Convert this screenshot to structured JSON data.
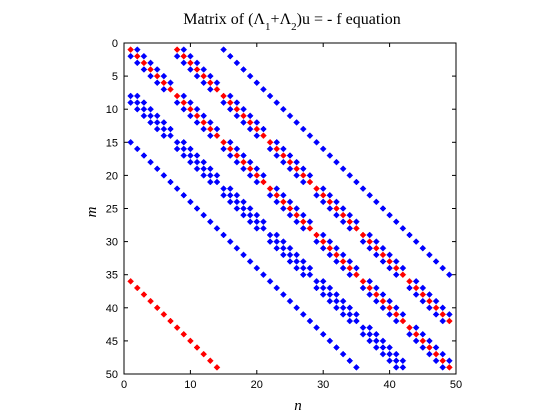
{
  "chart_data": {
    "type": "scatter",
    "title": {
      "prefix": "Matrix of (",
      "lambda": "Λ",
      "sub1": "1",
      "plus": "+",
      "sub2": "2",
      "suffix": ")u = - f equation"
    },
    "xlabel": "n",
    "ylabel": "m",
    "xlim": [
      0,
      50
    ],
    "ylim": [
      50,
      0
    ],
    "y_reversed": true,
    "x_ticks": [
      0,
      10,
      20,
      30,
      40,
      50
    ],
    "y_ticks": [
      0,
      5,
      10,
      15,
      20,
      25,
      30,
      35,
      40,
      45,
      50
    ],
    "grid": false,
    "legend": "none",
    "size": 49,
    "block_size": 7,
    "series": [
      {
        "color": "#ff0000",
        "offsets": [
          0,
          7,
          -35
        ]
      },
      {
        "color": "#0000ff",
        "offsets": [
          -1,
          1,
          -7,
          7,
          -8,
          8,
          -14,
          14
        ],
        "rule": "red block near-diagonal ±1 within 7×7 blocks plus full off-diagonal block couplings"
      }
    ]
  }
}
